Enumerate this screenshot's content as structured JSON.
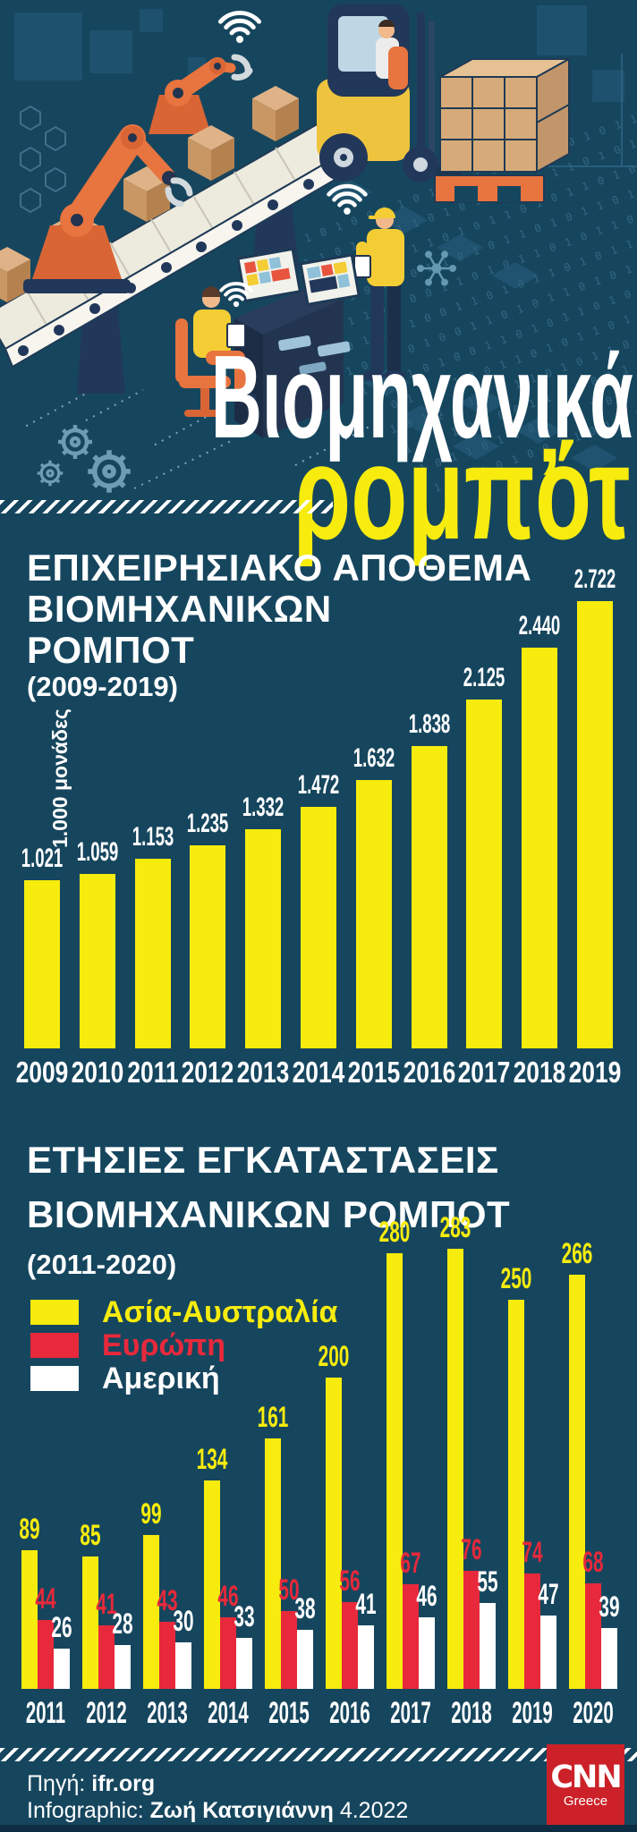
{
  "header": {
    "title_line1": "Βιομηχανικά",
    "title_line2": "ρομπότ",
    "comma_accent": ","
  },
  "illustration": {
    "binary_row": "1 0 1 1 0 1 0 0 1 1 0 1 0 1 1 0 1 0 1 1 0 1 0 1 1 0 1 1 0 1 0 0 1 1 0 1"
  },
  "chart_data": [
    {
      "type": "bar",
      "title": "ΕΠΙΧΕΙΡΗΣΙΑΚΟ ΑΠΟΘΕΜΑ ΒΙΟΜΗΧΑΝΙΚΩΝ ΡΟΜΠΟΤ",
      "title_lines": [
        "ΕΠΙΧΕΙΡΗΣΙΑΚΟ ΑΠΟΘΕΜΑ",
        "ΒΙΟΜΗΧΑΝΙΚΩΝ",
        "ΡΟΜΠΟΤ"
      ],
      "subtitle": "(2009-2019)",
      "ylabel": "1.000 μονάδες",
      "xlabel": "",
      "categories": [
        "2009",
        "2010",
        "2011",
        "2012",
        "2013",
        "2014",
        "2015",
        "2016",
        "2017",
        "2018",
        "2019"
      ],
      "values": [
        1021,
        1059,
        1153,
        1235,
        1332,
        1472,
        1632,
        1838,
        2125,
        2440,
        2722
      ],
      "value_labels": [
        "1.021",
        "1.059",
        "1.153",
        "1.235",
        "1.332",
        "1.472",
        "1.632",
        "1.838",
        "2.125",
        "2.440",
        "2.722"
      ],
      "bar_color": "#f7ec0d",
      "label_color": "#ffffff",
      "ylim": [
        0,
        2722
      ],
      "grid": false,
      "legend_position": "none"
    },
    {
      "type": "grouped-bar",
      "title": "ΕΤΗΣΙΕΣ ΕΓΚΑΤΑΣΤΑΣΕΙΣ ΒΙΟΜΗΧΑΝΙΚΩΝ ΡΟΜΠΟΤ",
      "title_lines": [
        "ΕΤΗΣΙΕΣ ΕΓΚΑΤΑΣΤΑΣΕΙΣ",
        "ΒΙΟΜΗΧΑΝΙΚΩΝ ΡΟΜΠΟΤ"
      ],
      "subtitle": "(2011-2020)",
      "categories": [
        "2011",
        "2012",
        "2013",
        "2014",
        "2015",
        "2016",
        "2017",
        "2018",
        "2019",
        "2020"
      ],
      "series": [
        {
          "name": "Ασία-Αυστραλία",
          "color": "#f7ec0d",
          "values": [
            89,
            85,
            99,
            134,
            161,
            200,
            280,
            283,
            250,
            266
          ]
        },
        {
          "name": "Ευρώπη",
          "color": "#e7293b",
          "values": [
            44,
            41,
            43,
            46,
            50,
            56,
            67,
            76,
            74,
            68
          ]
        },
        {
          "name": "Αμερική",
          "color": "#ffffff",
          "values": [
            26,
            28,
            30,
            33,
            38,
            41,
            46,
            55,
            47,
            39
          ]
        }
      ],
      "ylim": [
        0,
        283
      ],
      "grid": false,
      "legend_position": "left"
    }
  ],
  "footer": {
    "source_label": "Πηγή:",
    "source_value": "ifr.org",
    "credit_label": "Infographic:",
    "credit_author": "Ζωή Κατσιγιάννη",
    "credit_date": "4.2022",
    "logo_main": "CNN",
    "logo_sub": "Greece"
  },
  "colors": {
    "background": "#16465e",
    "accent_yellow": "#f7ec0d",
    "accent_red": "#e7293b",
    "text_white": "#ffffff",
    "cnn_red": "#cc2128",
    "bottom_strip": "#0d2d43"
  }
}
